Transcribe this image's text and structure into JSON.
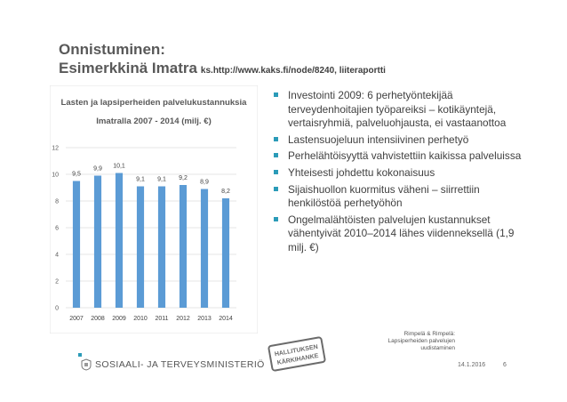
{
  "header": {
    "line1": "Onnistuminen:",
    "line2": "Esimerkkinä Imatra",
    "reference": "ks.http://www.kaks.fi/node/8240, liiteraportti"
  },
  "chart_data": {
    "type": "bar",
    "title_line1": "Lasten ja lapsiperheiden palvelukustannuksia",
    "title_line2": "Imatralla 2007 - 2014 (milj. €)",
    "categories": [
      "2007",
      "2008",
      "2009",
      "2010",
      "2011",
      "2012",
      "2013",
      "2014"
    ],
    "values": [
      9.5,
      9.9,
      10.1,
      9.1,
      9.1,
      9.2,
      8.9,
      8.2
    ],
    "value_labels": [
      "9,5",
      "9,9",
      "10,1",
      "9,1",
      "9,1",
      "9,2",
      "8,9",
      "8,2"
    ],
    "yticks": [
      "0",
      "2",
      "4",
      "6",
      "8",
      "10",
      "12"
    ],
    "ylim": [
      0,
      12
    ],
    "bar_color": "#5b9bd5",
    "grid": true
  },
  "bullets": [
    "Investointi 2009: 6 perhetyöntekijää terveydenhoitajien työpareiksi – kotikäyntejä, vertaisryhmiä, palveluohjausta, ei vastaanottoa",
    "Lastensuojeluun intensiivinen perhetyö",
    "Perhelähtöisyyttä vahvistettiin kaikissa palveluissa",
    "Yhteisesti johdettu kokonaisuus",
    "Sijaishuollon kuormitus väheni – siirrettiin henkilöstöä perhetyöhön",
    "Ongelmalähtöisten palvelujen kustannukset vähentyivät 2010–2014 lähes viidenneksellä (1,9 milj. €)"
  ],
  "footer": {
    "ministry": "SOSIAALI- JA TERVEYSMINISTERIÖ",
    "stamp_line1": "HALLITUKSEN",
    "stamp_line2": "KÄRKIHANKE",
    "citation_line1": "Rimpelä & Rimpelä:",
    "citation_line2": "Lapsiperheiden palvelujen",
    "citation_line3": "uudistaminen",
    "date": "14.1.2016",
    "page": "6"
  },
  "colors": {
    "accent": "#2b9bb8",
    "bar": "#5b9bd5"
  }
}
